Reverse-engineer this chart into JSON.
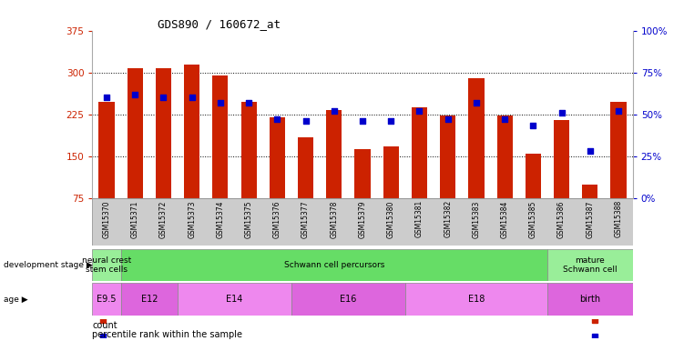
{
  "title": "GDS890 / 160672_at",
  "samples": [
    "GSM15370",
    "GSM15371",
    "GSM15372",
    "GSM15373",
    "GSM15374",
    "GSM15375",
    "GSM15376",
    "GSM15377",
    "GSM15378",
    "GSM15379",
    "GSM15380",
    "GSM15381",
    "GSM15382",
    "GSM15383",
    "GSM15384",
    "GSM15385",
    "GSM15386",
    "GSM15387",
    "GSM15388"
  ],
  "bar_heights": [
    248,
    308,
    307,
    315,
    295,
    248,
    220,
    183,
    232,
    163,
    168,
    237,
    222,
    290,
    222,
    155,
    215,
    98,
    248
  ],
  "dot_percentiles": [
    60,
    62,
    60,
    60,
    57,
    57,
    47,
    46,
    52,
    46,
    46,
    52,
    47,
    57,
    47,
    43,
    51,
    28,
    52
  ],
  "ylim_left": [
    75,
    375
  ],
  "ylim_right": [
    0,
    100
  ],
  "yticks_left": [
    75,
    150,
    225,
    300,
    375
  ],
  "yticks_right": [
    0,
    25,
    50,
    75,
    100
  ],
  "bar_color": "#cc2200",
  "dot_color": "#0000cc",
  "left_axis_color": "#cc2200",
  "right_axis_color": "#0000cc",
  "dev_stage_groups": [
    {
      "label": "neural crest\nstem cells",
      "start": 0,
      "end": 1,
      "color": "#99ee99"
    },
    {
      "label": "Schwann cell percursors",
      "start": 1,
      "end": 16,
      "color": "#66dd66"
    },
    {
      "label": "mature\nSchwann cell",
      "start": 16,
      "end": 19,
      "color": "#99ee99"
    }
  ],
  "age_groups": [
    {
      "label": "E9.5",
      "start": 0,
      "end": 1,
      "color": "#ee88ee"
    },
    {
      "label": "E12",
      "start": 1,
      "end": 3,
      "color": "#dd66dd"
    },
    {
      "label": "E14",
      "start": 3,
      "end": 7,
      "color": "#ee88ee"
    },
    {
      "label": "E16",
      "start": 7,
      "end": 11,
      "color": "#dd66dd"
    },
    {
      "label": "E18",
      "start": 11,
      "end": 16,
      "color": "#ee88ee"
    },
    {
      "label": "birth",
      "start": 16,
      "end": 19,
      "color": "#dd66dd"
    }
  ],
  "legend_items": [
    {
      "label": "count",
      "color": "#cc2200"
    },
    {
      "label": "percentile rank within the sample",
      "color": "#0000cc"
    }
  ]
}
